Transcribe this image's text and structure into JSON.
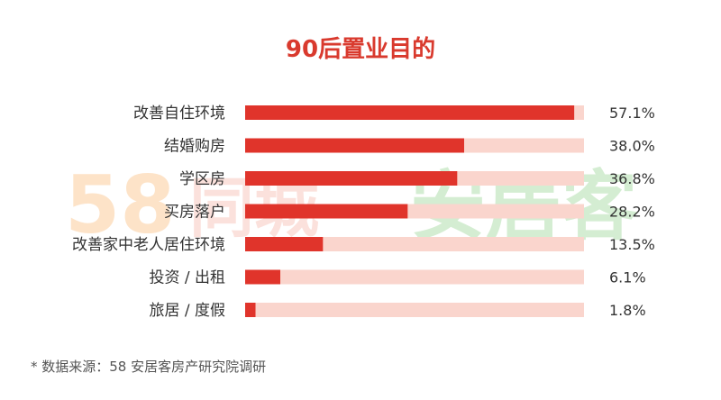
{
  "chart_data": {
    "type": "bar",
    "orientation": "horizontal",
    "title": "90后置业目的",
    "categories": [
      "改善自住环境",
      "结婚购房",
      "学区房",
      "买房落户",
      "改善家中老人居住环境",
      "投资 / 出租",
      "旅居 / 度假"
    ],
    "values": [
      57.1,
      38.0,
      36.8,
      28.2,
      13.5,
      6.1,
      1.8
    ],
    "value_labels": [
      "57.1%",
      "38.0%",
      "36.8%",
      "28.2%",
      "13.5%",
      "6.1%",
      "1.8%"
    ],
    "xlim": [
      0,
      60
    ],
    "grid": false,
    "legend": "none",
    "colors": {
      "bar": "#e0342b",
      "track": "#fad5cd",
      "title": "#d93a2e",
      "text": "#333333",
      "watermark_58": "#fde3c8",
      "watermark_city": "#fbe1dc",
      "watermark_anjuke": "#d4edd2"
    }
  },
  "watermark": {
    "logo_58": "58",
    "brand_city": "同城",
    "brand_anjuke": "安居客"
  },
  "source_note": "* 数据来源：58 安居客房产研究院调研"
}
